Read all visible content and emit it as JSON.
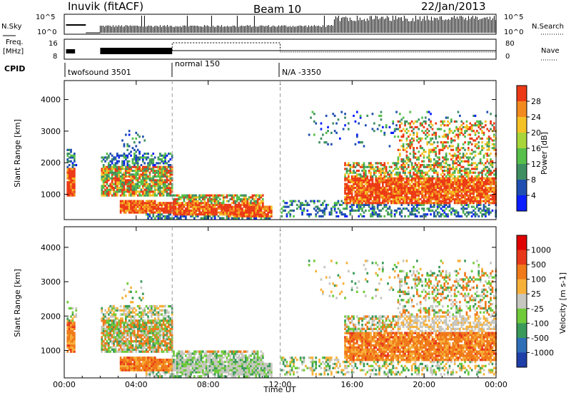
{
  "header": {
    "station": "Inuvik (fitACF)",
    "beam": "Beam 10",
    "date": "22/Jan/2013"
  },
  "noise_panel": {
    "left_label": "N.Sky",
    "right_label": "N.Search",
    "left_ticks": [
      "10^5",
      "10^0"
    ],
    "right_ticks": [
      "10^5",
      "10^0"
    ]
  },
  "freq_panel": {
    "left_label_line1": "Freq.",
    "left_label_line2": "[MHz]",
    "right_label": "Nave",
    "left_ticks": [
      "16",
      "8"
    ],
    "right_ticks": [
      "80",
      "0"
    ]
  },
  "cpid": {
    "label": "CPID",
    "segments": [
      {
        "name": "twofsound 3501",
        "start_hour": 0
      },
      {
        "name": "normal 150",
        "start_hour": 6
      },
      {
        "name": "N/A -3350",
        "start_hour": 12
      }
    ]
  },
  "chart_data": [
    {
      "type": "heatmap",
      "title": "",
      "xlabel": "",
      "ylabel": "Slant Range [km]",
      "xlim_hours": [
        0,
        24
      ],
      "ylim": [
        200,
        4600
      ],
      "yticks": [
        1000,
        2000,
        3000,
        4000
      ],
      "colorbar_label": "Power [dB]",
      "colorbar_ticks": [
        4,
        8,
        12,
        16,
        20,
        24,
        28
      ],
      "colorbar_colors": [
        "#0a1eff",
        "#1f4fb0",
        "#3f8f63",
        "#56c04a",
        "#a8d53a",
        "#f5c226",
        "#f28a1f",
        "#ec3a17"
      ]
    },
    {
      "type": "heatmap",
      "title": "",
      "xlabel": "Time UT",
      "ylabel": "Slant Range [km]",
      "xlim_hours": [
        0,
        24
      ],
      "ylim": [
        200,
        4600
      ],
      "yticks": [
        1000,
        2000,
        3000,
        4000
      ],
      "xticks": [
        "00:00",
        "04:00",
        "08:00",
        "12:00",
        "16:00",
        "20:00",
        "00:00"
      ],
      "colorbar_label": "Velocity [m s-1]",
      "colorbar_ticks": [
        "1000",
        "500",
        "100",
        "25",
        "-25",
        "-100",
        "-500",
        "-1000"
      ],
      "colorbar_colors": [
        "#1f3fa8",
        "#2f6fb8",
        "#3a9a5a",
        "#6fcb3a",
        "#c7c7c0",
        "#f7b13a",
        "#f07a1a",
        "#e8381a",
        "#e00000"
      ]
    }
  ]
}
